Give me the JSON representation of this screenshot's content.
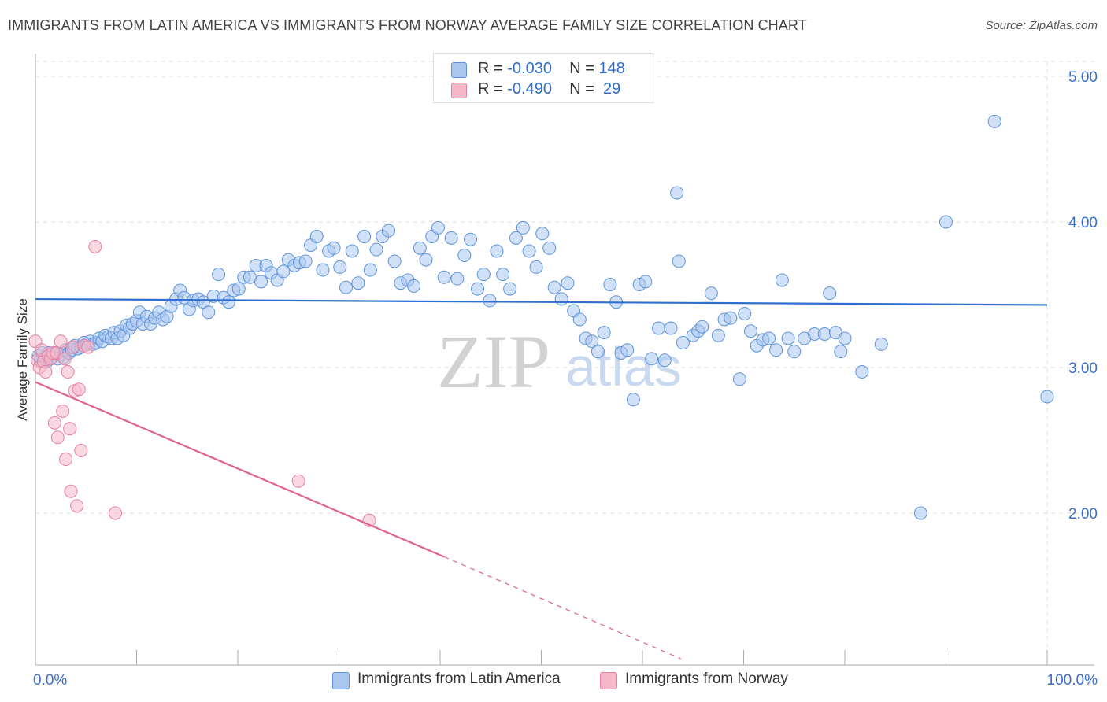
{
  "title": "IMMIGRANTS FROM LATIN AMERICA VS IMMIGRANTS FROM NORWAY AVERAGE FAMILY SIZE CORRELATION CHART",
  "source": "Source: ZipAtlas.com",
  "watermark": {
    "zip": "ZIP",
    "atlas": "atlas"
  },
  "legend": {
    "rows": [
      {
        "r_label": "R = ",
        "r_value": "-0.030",
        "n_label": "N = ",
        "n_value": "148"
      },
      {
        "r_label": "R = ",
        "r_value": "-0.490",
        "n_label": "N = ",
        "n_value": " 29"
      }
    ]
  },
  "bottom_legend": {
    "items": [
      "Immigrants from Latin America",
      "Immigrants from Norway"
    ]
  },
  "colors": {
    "blue_fill": "#a9c6ef",
    "blue_stroke": "#5e93da",
    "blue_line": "#2f6fcf",
    "pink_fill": "#f5b8cb",
    "pink_stroke": "#e77fa0",
    "pink_line": "#e06390",
    "axis_text": "#3b6fc9",
    "grid": "#dddddd"
  },
  "chart_data": {
    "type": "scatter",
    "title": "IMMIGRANTS FROM LATIN AMERICA VS IMMIGRANTS FROM NORWAY AVERAGE FAMILY SIZE CORRELATION CHART",
    "xlabel": "",
    "ylabel": "Average Family Size",
    "xlim": [
      0,
      100
    ],
    "ylim": [
      1.0,
      5.1
    ],
    "x_tick_labels": [
      "0.0%",
      "100.0%"
    ],
    "y_ticks": [
      2.0,
      3.0,
      4.0,
      5.0
    ],
    "y_tick_labels": [
      "2.00",
      "3.00",
      "4.00",
      "5.00"
    ],
    "grid": true,
    "legend_position": "top-center",
    "series": [
      {
        "name": "Immigrants from Latin America",
        "r": -0.03,
        "n": 148,
        "trend": {
          "x": [
            0,
            100
          ],
          "y": [
            3.47,
            3.43
          ]
        },
        "points": [
          [
            0.3,
            3.08
          ],
          [
            0.5,
            3.05
          ],
          [
            0.7,
            3.1
          ],
          [
            0.9,
            3.06
          ],
          [
            1.1,
            3.04
          ],
          [
            1.3,
            3.1
          ],
          [
            1.6,
            3.07
          ],
          [
            1.9,
            3.1
          ],
          [
            2.2,
            3.06
          ],
          [
            2.5,
            3.09
          ],
          [
            2.8,
            3.07
          ],
          [
            3.0,
            3.12
          ],
          [
            3.3,
            3.1
          ],
          [
            3.6,
            3.12
          ],
          [
            3.9,
            3.15
          ],
          [
            4.2,
            3.13
          ],
          [
            4.5,
            3.14
          ],
          [
            4.8,
            3.17
          ],
          [
            5.1,
            3.16
          ],
          [
            5.4,
            3.18
          ],
          [
            5.7,
            3.16
          ],
          [
            6.0,
            3.17
          ],
          [
            6.3,
            3.2
          ],
          [
            6.6,
            3.18
          ],
          [
            6.9,
            3.22
          ],
          [
            7.2,
            3.21
          ],
          [
            7.5,
            3.2
          ],
          [
            7.8,
            3.24
          ],
          [
            8.1,
            3.2
          ],
          [
            8.4,
            3.25
          ],
          [
            8.7,
            3.22
          ],
          [
            9.0,
            3.29
          ],
          [
            9.3,
            3.27
          ],
          [
            9.6,
            3.3
          ],
          [
            10.0,
            3.32
          ],
          [
            10.3,
            3.38
          ],
          [
            10.6,
            3.3
          ],
          [
            11.0,
            3.35
          ],
          [
            11.4,
            3.3
          ],
          [
            11.8,
            3.34
          ],
          [
            12.2,
            3.38
          ],
          [
            12.6,
            3.33
          ],
          [
            13.0,
            3.35
          ],
          [
            13.4,
            3.42
          ],
          [
            13.9,
            3.47
          ],
          [
            14.3,
            3.53
          ],
          [
            14.7,
            3.48
          ],
          [
            15.2,
            3.4
          ],
          [
            15.6,
            3.46
          ],
          [
            16.1,
            3.47
          ],
          [
            16.6,
            3.45
          ],
          [
            17.1,
            3.38
          ],
          [
            17.6,
            3.49
          ],
          [
            18.1,
            3.64
          ],
          [
            18.6,
            3.48
          ],
          [
            19.1,
            3.45
          ],
          [
            19.6,
            3.53
          ],
          [
            20.1,
            3.54
          ],
          [
            20.6,
            3.62
          ],
          [
            21.2,
            3.62
          ],
          [
            21.8,
            3.7
          ],
          [
            22.3,
            3.59
          ],
          [
            22.8,
            3.7
          ],
          [
            23.3,
            3.65
          ],
          [
            23.9,
            3.6
          ],
          [
            24.5,
            3.66
          ],
          [
            25.0,
            3.74
          ],
          [
            25.6,
            3.7
          ],
          [
            26.1,
            3.72
          ],
          [
            26.7,
            3.73
          ],
          [
            27.2,
            3.84
          ],
          [
            27.8,
            3.9
          ],
          [
            28.4,
            3.67
          ],
          [
            29.0,
            3.8
          ],
          [
            29.5,
            3.82
          ],
          [
            30.1,
            3.69
          ],
          [
            30.7,
            3.55
          ],
          [
            31.3,
            3.8
          ],
          [
            31.9,
            3.58
          ],
          [
            32.5,
            3.9
          ],
          [
            33.1,
            3.67
          ],
          [
            33.7,
            3.81
          ],
          [
            34.3,
            3.9
          ],
          [
            34.9,
            3.94
          ],
          [
            35.5,
            3.73
          ],
          [
            36.1,
            3.58
          ],
          [
            36.8,
            3.6
          ],
          [
            37.4,
            3.56
          ],
          [
            38.0,
            3.82
          ],
          [
            38.6,
            3.74
          ],
          [
            39.2,
            3.9
          ],
          [
            39.8,
            3.96
          ],
          [
            40.4,
            3.62
          ],
          [
            41.1,
            3.89
          ],
          [
            41.7,
            3.61
          ],
          [
            42.4,
            3.77
          ],
          [
            43.0,
            3.88
          ],
          [
            43.7,
            3.54
          ],
          [
            44.3,
            3.64
          ],
          [
            44.9,
            3.46
          ],
          [
            45.6,
            3.8
          ],
          [
            46.2,
            3.64
          ],
          [
            46.9,
            3.54
          ],
          [
            47.5,
            3.89
          ],
          [
            48.2,
            3.96
          ],
          [
            48.8,
            3.8
          ],
          [
            49.5,
            3.69
          ],
          [
            50.1,
            3.92
          ],
          [
            50.8,
            3.82
          ],
          [
            51.3,
            3.55
          ],
          [
            52.0,
            3.47
          ],
          [
            52.6,
            3.58
          ],
          [
            53.2,
            3.39
          ],
          [
            53.8,
            3.33
          ],
          [
            54.4,
            3.2
          ],
          [
            55.0,
            3.18
          ],
          [
            55.6,
            3.11
          ],
          [
            56.2,
            3.24
          ],
          [
            56.8,
            3.57
          ],
          [
            57.4,
            3.45
          ],
          [
            57.9,
            3.1
          ],
          [
            58.5,
            3.12
          ],
          [
            59.1,
            2.78
          ],
          [
            59.7,
            3.57
          ],
          [
            60.3,
            3.59
          ],
          [
            60.9,
            3.06
          ],
          [
            61.6,
            3.27
          ],
          [
            62.2,
            3.05
          ],
          [
            62.8,
            3.27
          ],
          [
            63.4,
            4.2
          ],
          [
            63.6,
            3.73
          ],
          [
            64.0,
            3.17
          ],
          [
            65.0,
            3.22
          ],
          [
            65.5,
            3.25
          ],
          [
            65.9,
            3.28
          ],
          [
            66.8,
            3.51
          ],
          [
            67.5,
            3.22
          ],
          [
            68.1,
            3.33
          ],
          [
            68.7,
            3.34
          ],
          [
            69.6,
            2.92
          ],
          [
            70.1,
            3.37
          ],
          [
            70.7,
            3.25
          ],
          [
            71.3,
            3.15
          ],
          [
            71.9,
            3.19
          ],
          [
            72.5,
            3.2
          ],
          [
            73.2,
            3.12
          ],
          [
            73.8,
            3.6
          ],
          [
            74.4,
            3.2
          ],
          [
            75.0,
            3.11
          ],
          [
            76.0,
            3.2
          ],
          [
            77.0,
            3.23
          ],
          [
            78.0,
            3.23
          ],
          [
            78.5,
            3.51
          ],
          [
            79.1,
            3.24
          ],
          [
            79.6,
            3.11
          ],
          [
            80.0,
            3.2
          ],
          [
            81.7,
            2.97
          ],
          [
            83.6,
            3.16
          ],
          [
            87.5,
            2.0
          ],
          [
            94.8,
            4.69
          ],
          [
            90.0,
            4.0
          ],
          [
            100.0,
            2.8
          ]
        ]
      },
      {
        "name": "Immigrants from Norway",
        "r": -0.49,
        "n": 29,
        "trend": {
          "x": [
            0,
            40.4
          ],
          "y": [
            2.9,
            1.7
          ]
        },
        "trend_dashed": {
          "x": [
            40.4,
            63.8
          ],
          "y": [
            1.7,
            1.0
          ]
        },
        "points": [
          [
            0.0,
            3.18
          ],
          [
            0.2,
            3.05
          ],
          [
            0.4,
            3.0
          ],
          [
            0.6,
            3.12
          ],
          [
            0.8,
            3.04
          ],
          [
            1.0,
            2.97
          ],
          [
            1.3,
            3.08
          ],
          [
            1.5,
            3.06
          ],
          [
            1.7,
            3.1
          ],
          [
            1.9,
            2.62
          ],
          [
            2.1,
            3.1
          ],
          [
            2.2,
            2.52
          ],
          [
            2.5,
            3.18
          ],
          [
            2.7,
            2.7
          ],
          [
            2.9,
            3.06
          ],
          [
            3.0,
            2.37
          ],
          [
            3.2,
            2.97
          ],
          [
            3.4,
            2.58
          ],
          [
            3.5,
            2.15
          ],
          [
            3.7,
            3.14
          ],
          [
            3.9,
            2.84
          ],
          [
            4.1,
            2.05
          ],
          [
            4.3,
            2.85
          ],
          [
            4.5,
            2.43
          ],
          [
            4.8,
            3.15
          ],
          [
            5.2,
            3.14
          ],
          [
            5.9,
            3.83
          ],
          [
            7.9,
            2.0
          ],
          [
            26.0,
            2.22
          ],
          [
            33.0,
            1.95
          ]
        ]
      }
    ]
  }
}
